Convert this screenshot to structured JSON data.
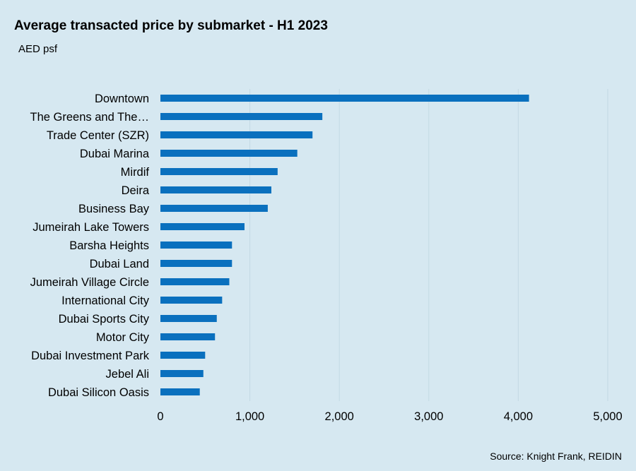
{
  "chart_data": {
    "type": "bar",
    "orientation": "horizontal",
    "title": "Average transacted price by submarket - H1 2023",
    "subtitle": "AED psf",
    "source": "Source: Knight Frank, REIDIN",
    "categories": [
      "Downtown",
      "The Greens and The…",
      "Trade Center (SZR)",
      "Dubai Marina",
      "Mirdif",
      "Deira",
      "Business Bay",
      "Jumeirah Lake Towers",
      "Barsha Heights",
      "Dubai Land",
      "Jumeirah Village Circle",
      "International City",
      "Dubai Sports City",
      "Motor City",
      "Dubai Investment Park",
      "Jebel Ali",
      "Dubai Silicon Oasis"
    ],
    "values": [
      4120,
      1810,
      1700,
      1530,
      1310,
      1240,
      1200,
      940,
      800,
      800,
      770,
      690,
      630,
      610,
      500,
      480,
      440
    ],
    "xlim": [
      0,
      5000
    ],
    "xticks": [
      0,
      1000,
      2000,
      3000,
      4000,
      5000
    ],
    "xtick_labels": [
      "0",
      "1,000",
      "2,000",
      "3,000",
      "4,000",
      "5,000"
    ],
    "grid": "vertical",
    "bar_color": "#0a70be",
    "background": "#d6e8f1"
  }
}
